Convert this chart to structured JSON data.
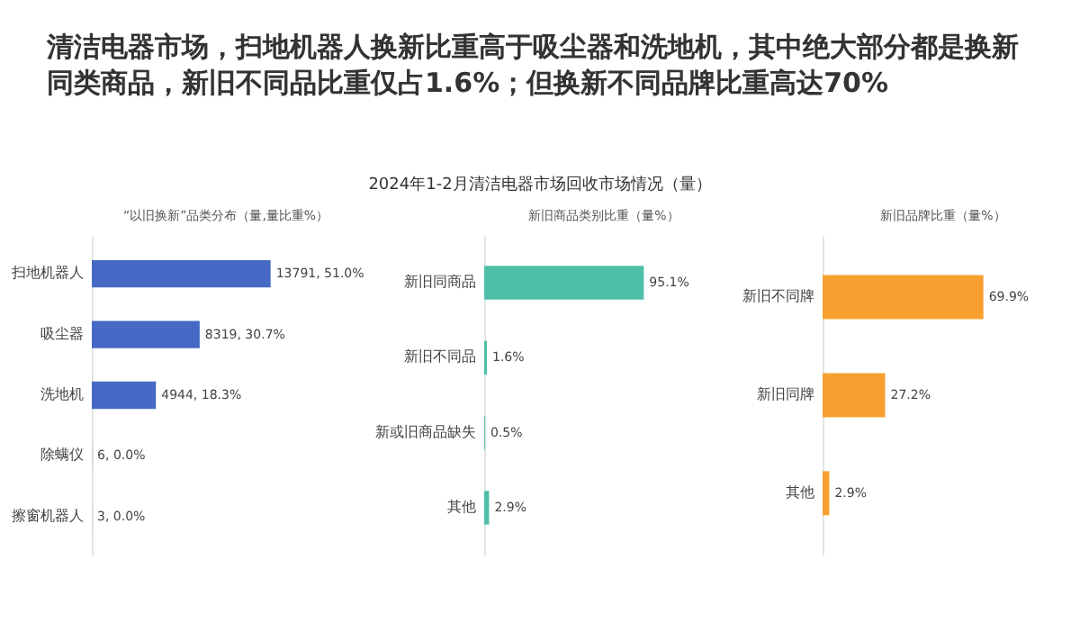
{
  "chart_data": [
    {
      "type": "other",
      "title": "清洁电器市场，扫地机器人换新比重高于吸尘器和洗地机，其中绝大部分都是换新同类商品，新旧不同品比重仅占1.6%；但换新不同品牌比重高达70%",
      "subtitle": "2024年1-2月清洁电器市场回收市场情况（量）"
    },
    {
      "type": "bar",
      "orientation": "horizontal",
      "title": "“以旧换新”品类分布（量,量比重%）",
      "categories": [
        "扫地机器人",
        "吸尘器",
        "洗地机",
        "除螨仪",
        "擦窗机器人"
      ],
      "values": [
        13791,
        8319,
        4944,
        6,
        3
      ],
      "value_labels": [
        "13791, 51.0%",
        "8319, 30.7%",
        "4944, 18.3%",
        "6, 0.0%",
        "3, 0.0%"
      ],
      "color": "#4569c4"
    },
    {
      "type": "bar",
      "orientation": "horizontal",
      "title": "新旧商品类别比重（量%）",
      "categories": [
        "新旧同商品",
        "新旧不同品",
        "新或旧商品缺失",
        "其他"
      ],
      "values": [
        95.1,
        1.6,
        0.5,
        2.9
      ],
      "value_labels": [
        "95.1%",
        "1.6%",
        "0.5%",
        "2.9%"
      ],
      "color": "#4dbfa9"
    },
    {
      "type": "bar",
      "orientation": "horizontal",
      "title": "新旧品牌比重（量%）",
      "categories": [
        "新旧不同牌",
        "新旧同牌",
        "其他"
      ],
      "values": [
        69.9,
        27.2,
        2.9
      ],
      "value_labels": [
        "69.9%",
        "27.2%",
        "2.9%"
      ],
      "color": "#f7a030"
    }
  ]
}
